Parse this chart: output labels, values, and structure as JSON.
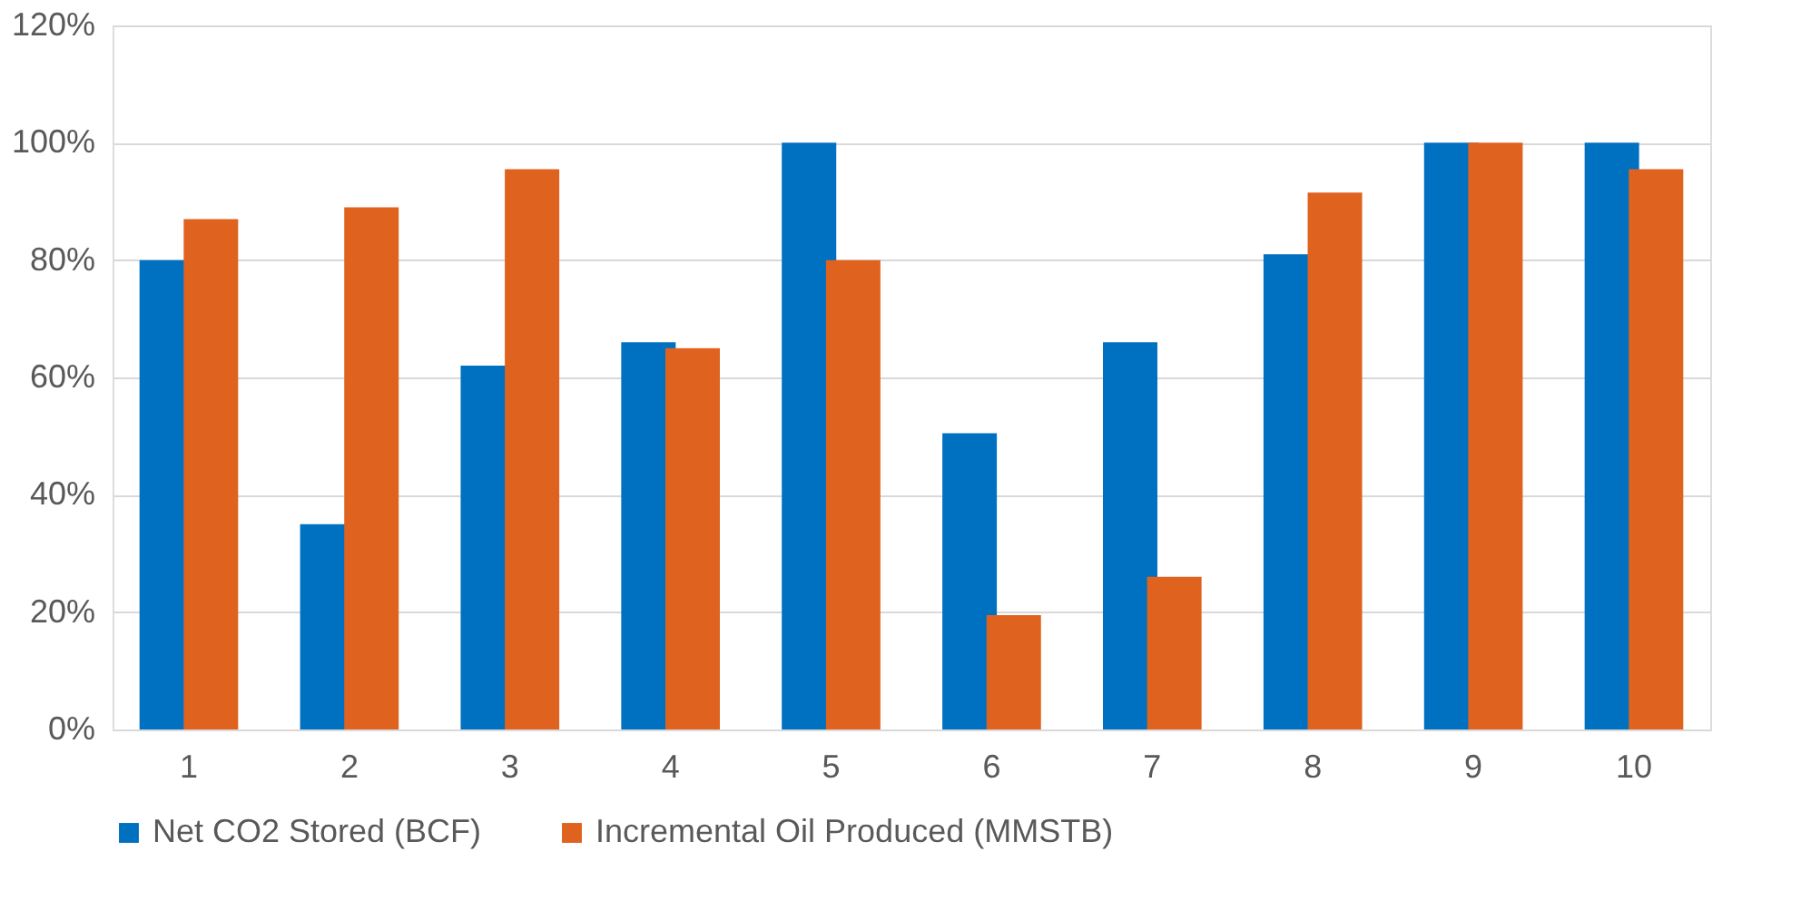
{
  "chart_data": {
    "type": "bar",
    "categories": [
      "1",
      "2",
      "3",
      "4",
      "5",
      "6",
      "7",
      "8",
      "9",
      "10"
    ],
    "series": [
      {
        "name": "Net CO2 Stored (BCF)",
        "color": "#0070c0",
        "values": [
          80,
          35,
          62,
          66,
          100,
          50.5,
          66,
          81,
          100,
          100
        ]
      },
      {
        "name": "Incremental Oil Produced (MMSTB)",
        "color": "#e0621f",
        "values": [
          87,
          89,
          95.5,
          65,
          80,
          19.5,
          26,
          91.5,
          100,
          95.5
        ]
      }
    ],
    "ylim": [
      0,
      120
    ],
    "yticks": [
      {
        "value": 0,
        "label": "0%"
      },
      {
        "value": 20,
        "label": "20%"
      },
      {
        "value": 40,
        "label": "40%"
      },
      {
        "value": 60,
        "label": "60%"
      },
      {
        "value": 80,
        "label": "80%"
      },
      {
        "value": 100,
        "label": "100%"
      },
      {
        "value": 120,
        "label": "120%"
      }
    ],
    "grid": "y",
    "legend": "bottom"
  }
}
